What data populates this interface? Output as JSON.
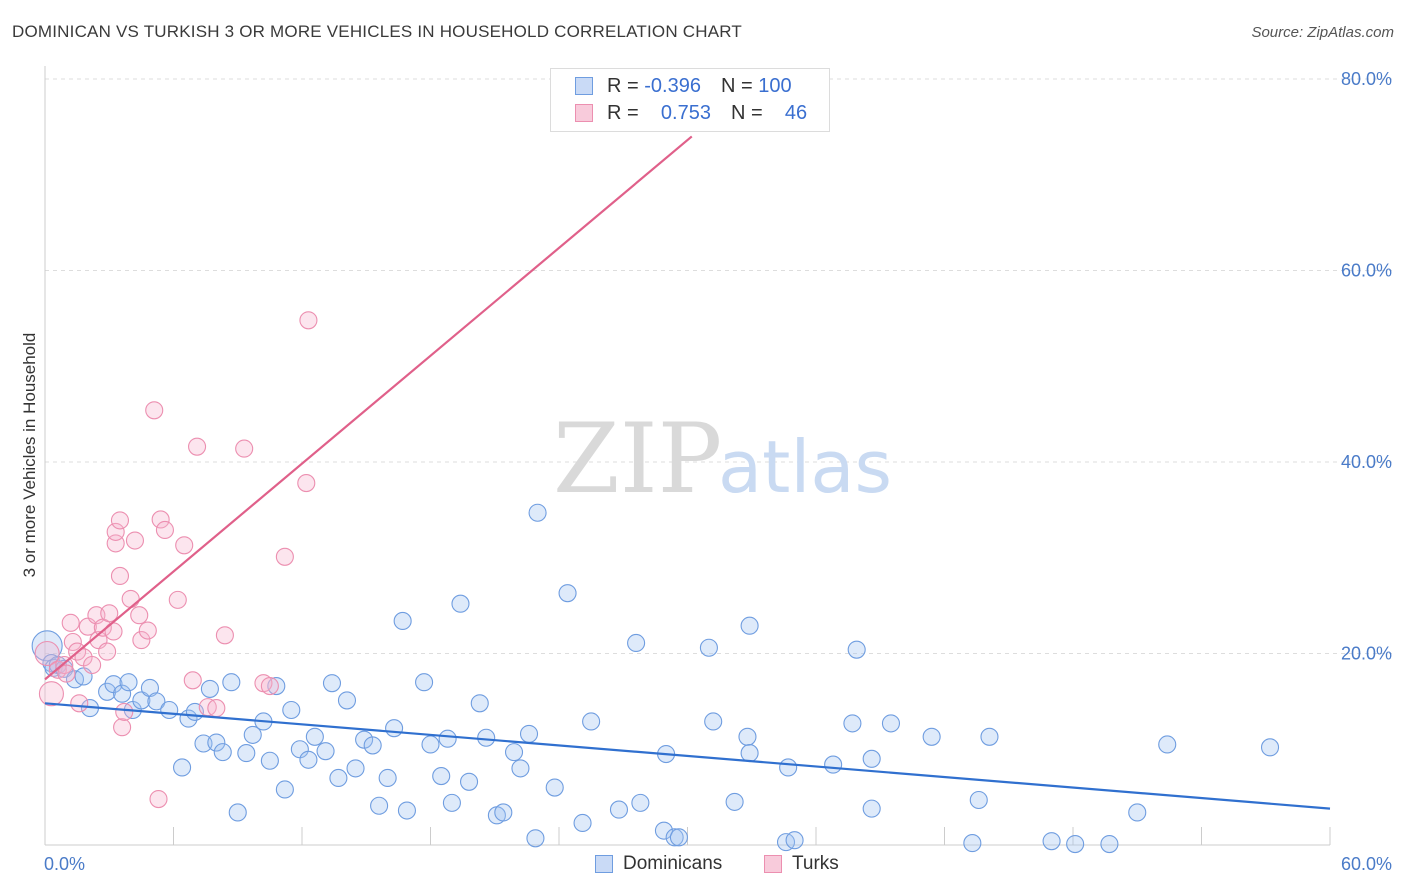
{
  "title": "DOMINICAN VS TURKISH 3 OR MORE VEHICLES IN HOUSEHOLD CORRELATION CHART",
  "source": "Source: ZipAtlas.com",
  "watermark": {
    "zip": "ZIP",
    "atlas": "atlas"
  },
  "legend_box": {
    "rows": [
      {
        "r_label": "R =",
        "r_value": "-0.396",
        "n_label": "N =",
        "n_value": "100"
      },
      {
        "r_label": "R =",
        "r_value": "0.753",
        "n_label": "N =",
        "n_value": "46"
      }
    ]
  },
  "bottom_legend": [
    "Dominicans",
    "Turks"
  ],
  "chart_data": {
    "type": "scatter",
    "title": "DOMINICAN VS TURKISH 3 OR MORE VEHICLES IN HOUSEHOLD CORRELATION CHART",
    "xlabel": "",
    "ylabel": "3 or more Vehicles in Household",
    "xlim": [
      0,
      60
    ],
    "ylim": [
      0,
      80
    ],
    "x_tick_labels": [
      "0.0%",
      "60.0%"
    ],
    "y_ticks": [
      20,
      40,
      60,
      80
    ],
    "y_tick_labels": [
      "20.0%",
      "40.0%",
      "60.0%",
      "80.0%"
    ],
    "grid": true,
    "legend_position": "top-center",
    "colors": {
      "dominicans": "#6f9de0",
      "turks": "#ec8fb0",
      "dom_line": "#3070cf",
      "turk_line": "#e0608a"
    },
    "series": [
      {
        "name": "Dominicans",
        "trend": {
          "x": [
            0,
            60
          ],
          "y": [
            14.8,
            3.8
          ]
        },
        "points": [
          [
            0.1,
            20.8
          ],
          [
            0.3,
            19.0
          ],
          [
            0.4,
            18.5
          ],
          [
            0.6,
            18.8
          ],
          [
            0.9,
            18.4
          ],
          [
            1.4,
            17.3
          ],
          [
            1.8,
            17.6
          ],
          [
            2.1,
            14.3
          ],
          [
            2.9,
            16.0
          ],
          [
            3.2,
            16.8
          ],
          [
            3.6,
            15.8
          ],
          [
            3.9,
            17.0
          ],
          [
            4.1,
            14.1
          ],
          [
            4.5,
            15.1
          ],
          [
            4.9,
            16.4
          ],
          [
            5.2,
            15.0
          ],
          [
            5.8,
            14.1
          ],
          [
            6.4,
            8.1
          ],
          [
            6.7,
            13.2
          ],
          [
            7.0,
            13.9
          ],
          [
            7.4,
            10.6
          ],
          [
            7.7,
            16.3
          ],
          [
            8.0,
            10.7
          ],
          [
            8.3,
            9.7
          ],
          [
            8.7,
            17.0
          ],
          [
            9.0,
            3.4
          ],
          [
            9.4,
            9.6
          ],
          [
            9.7,
            11.5
          ],
          [
            10.2,
            12.9
          ],
          [
            10.5,
            8.8
          ],
          [
            10.8,
            16.6
          ],
          [
            11.2,
            5.8
          ],
          [
            11.5,
            14.1
          ],
          [
            11.9,
            10.0
          ],
          [
            12.3,
            8.9
          ],
          [
            12.6,
            11.3
          ],
          [
            13.1,
            9.8
          ],
          [
            13.4,
            16.9
          ],
          [
            13.7,
            7.0
          ],
          [
            14.1,
            15.1
          ],
          [
            14.5,
            8.0
          ],
          [
            14.9,
            11.0
          ],
          [
            15.3,
            10.4
          ],
          [
            15.6,
            4.1
          ],
          [
            16.0,
            7.0
          ],
          [
            16.3,
            12.2
          ],
          [
            16.7,
            23.4
          ],
          [
            16.9,
            3.6
          ],
          [
            17.7,
            17.0
          ],
          [
            18.0,
            10.5
          ],
          [
            18.5,
            7.2
          ],
          [
            18.8,
            11.1
          ],
          [
            19.0,
            4.4
          ],
          [
            19.4,
            25.2
          ],
          [
            19.8,
            6.6
          ],
          [
            20.3,
            14.8
          ],
          [
            20.6,
            11.2
          ],
          [
            21.1,
            3.1
          ],
          [
            21.4,
            3.4
          ],
          [
            21.9,
            9.7
          ],
          [
            22.2,
            8.0
          ],
          [
            22.6,
            11.6
          ],
          [
            22.9,
            0.7
          ],
          [
            23.0,
            34.7
          ],
          [
            23.8,
            6.0
          ],
          [
            24.4,
            26.3
          ],
          [
            25.1,
            2.3
          ],
          [
            25.5,
            12.9
          ],
          [
            26.8,
            3.7
          ],
          [
            27.6,
            21.1
          ],
          [
            27.8,
            4.4
          ],
          [
            28.9,
            1.5
          ],
          [
            29.0,
            9.5
          ],
          [
            29.4,
            0.8
          ],
          [
            29.6,
            0.8
          ],
          [
            31.0,
            20.6
          ],
          [
            31.2,
            12.9
          ],
          [
            32.2,
            4.5
          ],
          [
            32.8,
            11.3
          ],
          [
            32.9,
            9.6
          ],
          [
            32.9,
            22.9
          ],
          [
            34.6,
            0.3
          ],
          [
            34.7,
            8.1
          ],
          [
            35.0,
            0.5
          ],
          [
            36.8,
            8.4
          ],
          [
            37.7,
            12.7
          ],
          [
            37.9,
            20.4
          ],
          [
            38.6,
            3.8
          ],
          [
            38.6,
            9.0
          ],
          [
            39.5,
            12.7
          ],
          [
            41.4,
            11.3
          ],
          [
            43.3,
            0.2
          ],
          [
            43.6,
            4.7
          ],
          [
            44.1,
            11.3
          ],
          [
            47.0,
            0.4
          ],
          [
            48.1,
            0.1
          ],
          [
            49.7,
            0.1
          ],
          [
            51.0,
            3.4
          ],
          [
            52.4,
            10.5
          ],
          [
            57.2,
            10.2
          ]
        ]
      },
      {
        "name": "Turks",
        "trend": {
          "x": [
            0,
            30.2
          ],
          "y": [
            17.3,
            74.0
          ]
        },
        "points": [
          [
            0.1,
            20.0
          ],
          [
            0.3,
            15.8
          ],
          [
            0.6,
            18.3
          ],
          [
            0.9,
            18.8
          ],
          [
            1.0,
            17.9
          ],
          [
            1.2,
            23.2
          ],
          [
            1.3,
            21.2
          ],
          [
            1.5,
            20.2
          ],
          [
            1.6,
            14.8
          ],
          [
            1.8,
            19.6
          ],
          [
            2.0,
            22.8
          ],
          [
            2.2,
            18.8
          ],
          [
            2.4,
            24.0
          ],
          [
            2.5,
            21.4
          ],
          [
            2.7,
            22.7
          ],
          [
            2.9,
            20.2
          ],
          [
            3.0,
            24.2
          ],
          [
            3.2,
            22.3
          ],
          [
            3.3,
            31.5
          ],
          [
            3.3,
            32.7
          ],
          [
            3.5,
            33.9
          ],
          [
            3.5,
            28.1
          ],
          [
            3.6,
            12.3
          ],
          [
            3.7,
            13.9
          ],
          [
            4.0,
            25.7
          ],
          [
            4.2,
            31.8
          ],
          [
            4.4,
            24.0
          ],
          [
            4.5,
            21.4
          ],
          [
            4.8,
            22.4
          ],
          [
            5.1,
            45.4
          ],
          [
            5.3,
            4.8
          ],
          [
            5.4,
            34.0
          ],
          [
            5.6,
            32.9
          ],
          [
            6.2,
            25.6
          ],
          [
            6.5,
            31.3
          ],
          [
            6.9,
            17.2
          ],
          [
            7.1,
            41.6
          ],
          [
            7.6,
            14.4
          ],
          [
            8.4,
            21.9
          ],
          [
            9.3,
            41.4
          ],
          [
            10.2,
            16.9
          ],
          [
            10.5,
            16.6
          ],
          [
            11.2,
            30.1
          ],
          [
            12.2,
            37.8
          ],
          [
            12.3,
            54.8
          ],
          [
            8.0,
            14.3
          ]
        ]
      }
    ]
  }
}
